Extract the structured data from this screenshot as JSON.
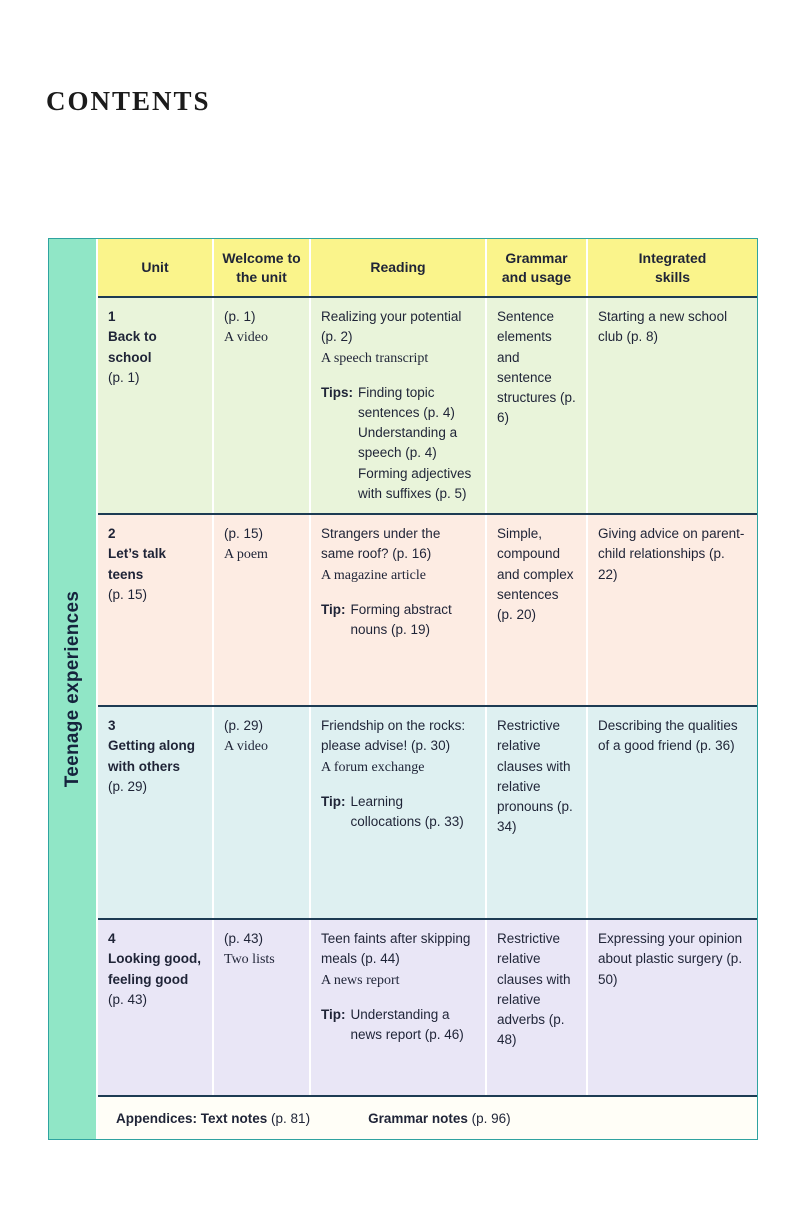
{
  "page": {
    "title": "CONTENTS"
  },
  "strand": {
    "label": "Teenage experiences"
  },
  "colors": {
    "header_bg": "#faf48b",
    "strand_bg": "#90e6c6",
    "row1_bg": "#e9f4da",
    "row2_bg": "#fdece3",
    "row3_bg": "#def0f1",
    "row4_bg": "#e9e6f6",
    "footer_bg": "#fffef7",
    "divider": "#1d3b53",
    "outer_border": "#2fa3a0",
    "text": "#1f2437"
  },
  "table": {
    "headers": {
      "unit": "Unit",
      "welcome": "Welcome to the unit",
      "reading": "Reading",
      "grammar": "Grammar and usage",
      "skills": "Integrated skills"
    },
    "rows": [
      {
        "unit_num": "1",
        "unit_name": "Back to school",
        "unit_page": "(p. 1)",
        "welcome_page": "(p. 1)",
        "welcome_genre": "A video",
        "reading_title": "Realizing your potential (p. 2)",
        "reading_genre": "A speech transcript",
        "tips_label": "Tips:",
        "tips": [
          "Finding topic sentences (p. 4)",
          "Understanding a speech (p. 4)",
          "Forming adjectives with suffixes (p. 5)"
        ],
        "grammar": "Sentence elements and sentence structures (p. 6)",
        "skills": "Starting a new school club (p. 8)"
      },
      {
        "unit_num": "2",
        "unit_name": "Let’s talk teens",
        "unit_page": "(p. 15)",
        "welcome_page": "(p. 15)",
        "welcome_genre": "A poem",
        "reading_title": "Strangers under the same roof? (p. 16)",
        "reading_genre": "A magazine article",
        "tips_label": "Tip:",
        "tips": [
          "Forming abstract nouns (p. 19)"
        ],
        "grammar": "Simple, compound and complex sentences (p. 20)",
        "skills": "Giving advice on parent-child relationships (p. 22)"
      },
      {
        "unit_num": "3",
        "unit_name": "Getting along with others",
        "unit_page": "(p. 29)",
        "welcome_page": "(p. 29)",
        "welcome_genre": "A video",
        "reading_title": "Friendship on the rocks: please advise! (p. 30)",
        "reading_genre": "A forum exchange",
        "tips_label": "Tip:",
        "tips": [
          "Learning collocations (p. 33)"
        ],
        "grammar": "Restrictive relative clauses with relative pronouns (p. 34)",
        "skills": "Describing the qualities of a good friend (p. 36)"
      },
      {
        "unit_num": "4",
        "unit_name": "Looking good, feeling good",
        "unit_page": "(p. 43)",
        "welcome_page": "(p. 43)",
        "welcome_genre": "Two lists",
        "reading_title": "Teen faints after skipping meals (p. 44)",
        "reading_genre": "A news report",
        "tips_label": "Tip:",
        "tips": [
          "Understanding a news report (p. 46)"
        ],
        "grammar": "Restrictive relative clauses with relative adverbs (p. 48)",
        "skills": "Expressing your opinion about plastic surgery (p. 50)"
      }
    ],
    "footer": {
      "appendices_label": "Appendices: Text notes",
      "appendices_page": "(p. 81)",
      "grammar_label": "Grammar notes",
      "grammar_page": "(p. 96)"
    }
  }
}
